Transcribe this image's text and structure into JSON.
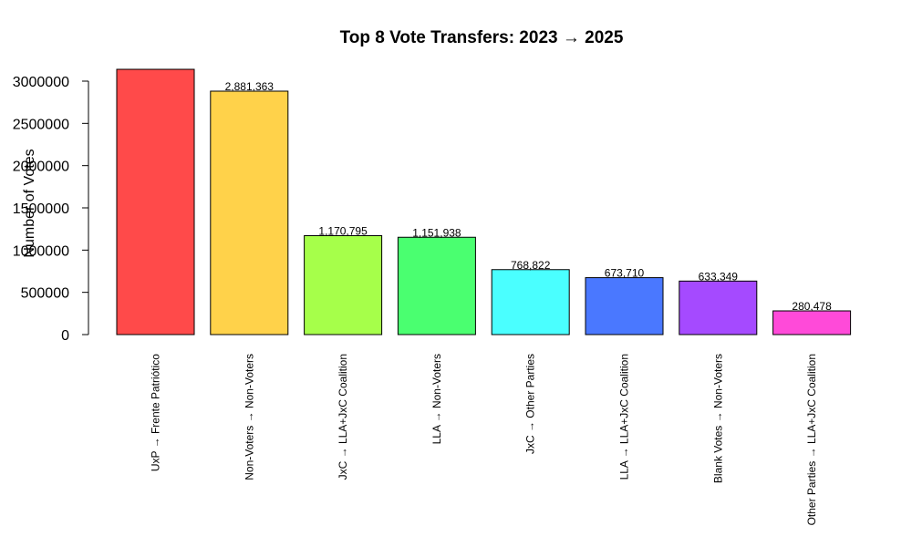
{
  "chart_data": {
    "type": "bar",
    "title": "Top 8 Vote Transfers: 2023 → 2025",
    "xlabel": "",
    "ylabel": "Number of Votes",
    "ylim": [
      0,
      3100000
    ],
    "yticks": [
      "0",
      "500000",
      "1000000",
      "1500000",
      "2000000",
      "2500000",
      "3000000"
    ],
    "ytick_values": [
      0,
      500000,
      1000000,
      1500000,
      2000000,
      2500000,
      3000000
    ],
    "categories": [
      "UxP → Frente Patriótico",
      "Non-Voters → Non-Voters",
      "JxC → LLA+JxC Coalition",
      "LLA → Non-Voters",
      "JxC → Other Parties",
      "LLA → LLA+JxC Coalition",
      "Blank Votes → Non-Voters",
      "Other Parties → LLA+JxC Coalition"
    ],
    "values": [
      3140000,
      2881363,
      1170795,
      1151938,
      768822,
      673710,
      633349,
      280478
    ],
    "data_labels": [
      "",
      "2,881,363",
      "1,170,795",
      "1,151,938",
      "768,822",
      "673,710",
      "633,349",
      "280,478"
    ],
    "colors": [
      "#FF4A4A",
      "#FFD24A",
      "#A6FF4A",
      "#4AFF70",
      "#4AFFFF",
      "#4A78FF",
      "#A54AFF",
      "#FF4AD9"
    ],
    "grid": false,
    "legend": "none"
  }
}
